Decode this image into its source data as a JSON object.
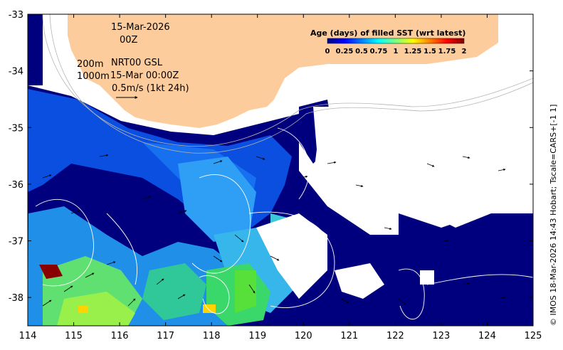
{
  "annotations": {
    "date": "15-Mar-2026",
    "time": "00Z",
    "depth_200": "200m",
    "depth_1000": "1000m",
    "product": "NRT00 GSL",
    "product_time": "15-Mar 00:00Z",
    "vector_scale": "0.5m/s (1kt 24h)"
  },
  "credit": "© IMOS 18-Mar-2026 14:43 Hobart; Tscale=CARS+[-1 1]",
  "colors": {
    "land": "#fccc9c",
    "nodata": "#ffffff",
    "contour": "#ffffff",
    "bathymetry": "#b4b4b4",
    "vector": "#000000"
  },
  "map": {
    "lon_range": [
      114,
      125
    ],
    "lat_range": [
      -38.5,
      -33
    ],
    "x_ticks": [
      "114",
      "115",
      "116",
      "117",
      "118",
      "119",
      "120",
      "121",
      "122",
      "123",
      "124",
      "125"
    ],
    "y_ticks": [
      "-33",
      "-34",
      "-35",
      "-36",
      "-37",
      "-38"
    ]
  },
  "colorbar": {
    "title": "Age (days) of filled SST (wrt latest)",
    "tick_labels": [
      "0",
      "0.25",
      "0.5",
      "0.75",
      "1",
      "1.25",
      "1.5",
      "1.75",
      "2"
    ],
    "range": [
      0,
      2
    ],
    "colormap": [
      "#00007f",
      "#0000ff",
      "#007fff",
      "#00ffff",
      "#7fff7f",
      "#ffff00",
      "#ff7f00",
      "#ff0000",
      "#7f0000"
    ]
  }
}
